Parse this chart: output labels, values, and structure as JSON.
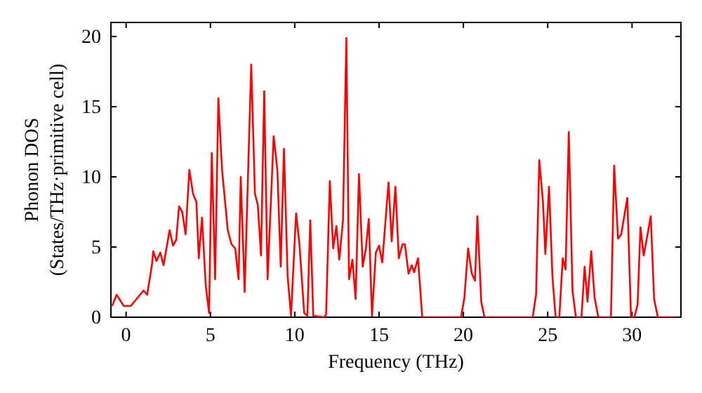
{
  "chart_data": {
    "type": "line",
    "xlabel": "Frequency (THz)",
    "ylabel": "Phonon DOS\n(States/THz·primitive cell)",
    "xlim": [
      -0.9,
      32.9
    ],
    "ylim": [
      0,
      21
    ],
    "xticks": [
      0,
      5,
      10,
      15,
      20,
      25,
      30
    ],
    "yticks": [
      0,
      5,
      10,
      15,
      20
    ],
    "grid": false,
    "series": [
      {
        "color": "#ff0000",
        "x": [
          -0.83,
          -0.56,
          -0.14,
          0.28,
          0.69,
          1.03,
          1.25,
          1.53,
          1.61,
          1.8,
          2.03,
          2.22,
          2.58,
          2.78,
          2.97,
          3.14,
          3.33,
          3.53,
          3.75,
          3.97,
          4.17,
          4.31,
          4.5,
          4.72,
          4.92,
          5.08,
          5.28,
          5.47,
          5.69,
          6.03,
          6.25,
          6.47,
          6.67,
          6.8,
          7.03,
          7.42,
          7.64,
          7.81,
          8.0,
          8.19,
          8.39,
          8.75,
          8.97,
          9.17,
          9.36,
          9.58,
          9.78,
          10.0,
          10.08,
          10.28,
          10.56,
          10.75,
          10.92,
          11.1,
          11.75,
          11.86,
          12.08,
          12.28,
          12.47,
          12.64,
          12.86,
          13.06,
          13.22,
          13.42,
          13.61,
          13.81,
          14.03,
          14.22,
          14.39,
          14.58,
          14.81,
          15.0,
          15.19,
          15.56,
          15.75,
          15.97,
          16.17,
          16.39,
          16.53,
          16.75,
          16.94,
          17.08,
          17.31,
          17.56,
          19.86,
          20.06,
          20.28,
          20.5,
          20.69,
          20.83,
          21.06,
          21.25,
          24.11,
          24.31,
          24.5,
          24.72,
          24.86,
          25.08,
          25.28,
          25.47,
          25.69,
          25.89,
          26.06,
          26.25,
          26.47,
          26.67,
          27.0,
          27.19,
          27.36,
          27.58,
          27.78,
          28.0,
          28.75,
          28.94,
          29.17,
          29.36,
          29.72,
          29.94,
          30.14,
          30.33,
          30.5,
          30.69,
          30.92,
          31.11,
          31.31,
          31.53,
          32.6
        ],
        "values": [
          0.8,
          1.6,
          0.8,
          0.8,
          1.4,
          1.9,
          1.6,
          3.7,
          4.7,
          4.0,
          4.6,
          3.7,
          6.2,
          5.1,
          5.5,
          7.9,
          7.5,
          5.9,
          10.5,
          8.8,
          8.2,
          4.2,
          7.1,
          2.3,
          0.3,
          11.7,
          2.7,
          15.6,
          10.5,
          6.2,
          5.2,
          4.9,
          2.7,
          10.0,
          1.8,
          18.0,
          8.8,
          8.0,
          4.4,
          16.1,
          2.7,
          12.9,
          10.5,
          3.6,
          12.0,
          2.9,
          0.1,
          5.5,
          7.4,
          5.2,
          0.3,
          0.1,
          6.9,
          0.1,
          0,
          0.2,
          9.7,
          4.9,
          6.5,
          4.1,
          6.9,
          19.9,
          2.7,
          4.1,
          1.3,
          10.2,
          3.6,
          4.9,
          7.0,
          0.1,
          4.6,
          5.1,
          3.9,
          9.6,
          5.4,
          9.3,
          4.2,
          5.2,
          5.2,
          3.1,
          3.7,
          3.2,
          4.2,
          0,
          0,
          1.4,
          4.9,
          3.1,
          2.6,
          7.2,
          1.1,
          0,
          0,
          1.6,
          11.2,
          8.2,
          4.5,
          9.3,
          2.9,
          0,
          0,
          4.2,
          3.4,
          13.2,
          1.9,
          0,
          0,
          3.6,
          1.1,
          4.7,
          1.4,
          0,
          0,
          10.8,
          5.6,
          5.9,
          8.5,
          0,
          0,
          0.9,
          6.4,
          4.4,
          5.9,
          7.2,
          1.3,
          0,
          0
        ]
      }
    ]
  }
}
